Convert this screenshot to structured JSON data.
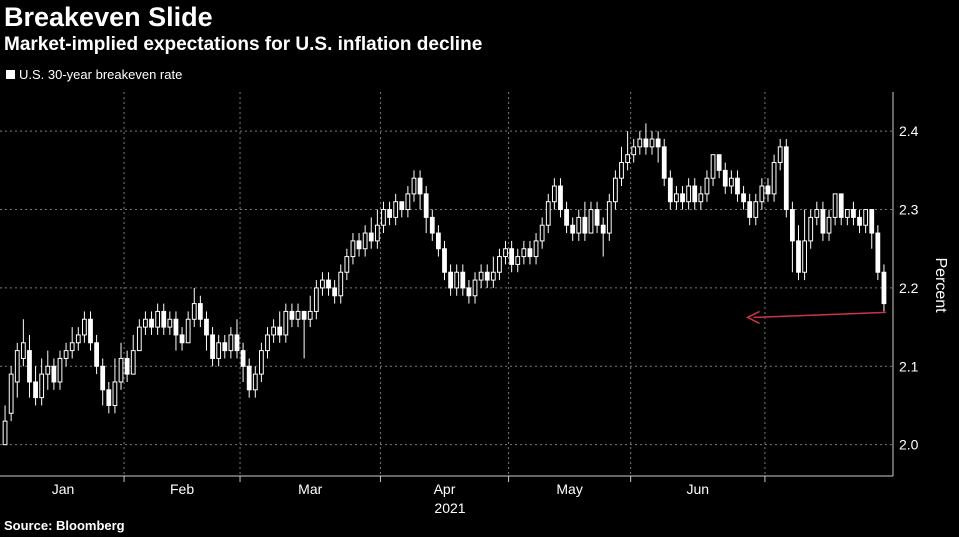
{
  "chart_data": {
    "type": "candlestick",
    "title": "Breakeven Slide",
    "subtitle": "Market-implied expectations for U.S. inflation decline",
    "ylabel": "Percent",
    "year_label": "2021",
    "source": "Source: Bloomberg",
    "legend": [
      {
        "name": "U.S. 30-year breakeven rate",
        "color": "#ffffff"
      }
    ],
    "ylim": [
      1.96,
      2.45
    ],
    "yticks": [
      2.0,
      2.1,
      2.2,
      2.3,
      2.4
    ],
    "month_labels": [
      "Jan",
      "Feb",
      "Mar",
      "Apr",
      "May",
      "Jun"
    ],
    "grid": true,
    "annotation": {
      "type": "arrow",
      "color": "#d0314a",
      "from_day": 122,
      "to_day": 121,
      "value": 2.17
    },
    "series": [
      {
        "name": "U.S. 30-year breakeven rate",
        "candles": [
          [
            2.0,
            2.03,
            2.0,
            2.05
          ],
          [
            2.04,
            2.09,
            2.03,
            2.1
          ],
          [
            2.08,
            2.12,
            2.06,
            2.13
          ],
          [
            2.11,
            2.13,
            2.1,
            2.16
          ],
          [
            2.12,
            2.08,
            2.06,
            2.14
          ],
          [
            2.08,
            2.06,
            2.05,
            2.1
          ],
          [
            2.06,
            2.09,
            2.05,
            2.11
          ],
          [
            2.09,
            2.1,
            2.07,
            2.12
          ],
          [
            2.1,
            2.08,
            2.07,
            2.11
          ],
          [
            2.08,
            2.11,
            2.07,
            2.12
          ],
          [
            2.11,
            2.12,
            2.1,
            2.13
          ],
          [
            2.12,
            2.13,
            2.11,
            2.15
          ],
          [
            2.13,
            2.14,
            2.12,
            2.15
          ],
          [
            2.14,
            2.16,
            2.13,
            2.17
          ],
          [
            2.16,
            2.13,
            2.12,
            2.17
          ],
          [
            2.13,
            2.1,
            2.09,
            2.14
          ],
          [
            2.1,
            2.07,
            2.05,
            2.11
          ],
          [
            2.07,
            2.05,
            2.04,
            2.08
          ],
          [
            2.05,
            2.08,
            2.04,
            2.11
          ],
          [
            2.08,
            2.11,
            2.07,
            2.13
          ],
          [
            2.11,
            2.09,
            2.08,
            2.12
          ],
          [
            2.09,
            2.12,
            2.09,
            2.14
          ],
          [
            2.12,
            2.15,
            2.12,
            2.16
          ],
          [
            2.15,
            2.16,
            2.14,
            2.17
          ],
          [
            2.16,
            2.15,
            2.14,
            2.17
          ],
          [
            2.15,
            2.17,
            2.14,
            2.18
          ],
          [
            2.17,
            2.15,
            2.14,
            2.18
          ],
          [
            2.15,
            2.16,
            2.14,
            2.17
          ],
          [
            2.16,
            2.14,
            2.12,
            2.17
          ],
          [
            2.14,
            2.13,
            2.12,
            2.15
          ],
          [
            2.13,
            2.16,
            2.13,
            2.17
          ],
          [
            2.16,
            2.18,
            2.15,
            2.2
          ],
          [
            2.18,
            2.16,
            2.15,
            2.19
          ],
          [
            2.16,
            2.14,
            2.12,
            2.17
          ],
          [
            2.14,
            2.11,
            2.1,
            2.15
          ],
          [
            2.11,
            2.13,
            2.1,
            2.14
          ],
          [
            2.13,
            2.12,
            2.11,
            2.14
          ],
          [
            2.12,
            2.14,
            2.11,
            2.15
          ],
          [
            2.14,
            2.12,
            2.11,
            2.16
          ],
          [
            2.12,
            2.1,
            2.08,
            2.13
          ],
          [
            2.1,
            2.07,
            2.06,
            2.11
          ],
          [
            2.07,
            2.09,
            2.06,
            2.1
          ],
          [
            2.09,
            2.12,
            2.08,
            2.13
          ],
          [
            2.12,
            2.14,
            2.11,
            2.15
          ],
          [
            2.14,
            2.15,
            2.13,
            2.16
          ],
          [
            2.15,
            2.14,
            2.13,
            2.17
          ],
          [
            2.14,
            2.17,
            2.13,
            2.18
          ],
          [
            2.17,
            2.16,
            2.15,
            2.18
          ],
          [
            2.16,
            2.17,
            2.15,
            2.18
          ],
          [
            2.17,
            2.16,
            2.11,
            2.17
          ],
          [
            2.16,
            2.17,
            2.15,
            2.19
          ],
          [
            2.17,
            2.2,
            2.16,
            2.21
          ],
          [
            2.2,
            2.21,
            2.19,
            2.22
          ],
          [
            2.21,
            2.2,
            2.19,
            2.22
          ],
          [
            2.2,
            2.19,
            2.18,
            2.21
          ],
          [
            2.19,
            2.22,
            2.18,
            2.23
          ],
          [
            2.22,
            2.24,
            2.21,
            2.25
          ],
          [
            2.24,
            2.26,
            2.23,
            2.27
          ],
          [
            2.26,
            2.25,
            2.24,
            2.27
          ],
          [
            2.25,
            2.27,
            2.24,
            2.28
          ],
          [
            2.27,
            2.26,
            2.25,
            2.29
          ],
          [
            2.26,
            2.28,
            2.25,
            2.3
          ],
          [
            2.28,
            2.3,
            2.27,
            2.31
          ],
          [
            2.3,
            2.29,
            2.28,
            2.31
          ],
          [
            2.29,
            2.31,
            2.28,
            2.32
          ],
          [
            2.31,
            2.3,
            2.29,
            2.31
          ],
          [
            2.3,
            2.32,
            2.29,
            2.33
          ],
          [
            2.32,
            2.34,
            2.31,
            2.35
          ],
          [
            2.34,
            2.32,
            2.3,
            2.35
          ],
          [
            2.32,
            2.29,
            2.27,
            2.33
          ],
          [
            2.29,
            2.27,
            2.26,
            2.3
          ],
          [
            2.27,
            2.25,
            2.24,
            2.28
          ],
          [
            2.25,
            2.22,
            2.21,
            2.26
          ],
          [
            2.22,
            2.2,
            2.19,
            2.23
          ],
          [
            2.2,
            2.22,
            2.19,
            2.23
          ],
          [
            2.22,
            2.2,
            2.19,
            2.23
          ],
          [
            2.2,
            2.19,
            2.18,
            2.21
          ],
          [
            2.19,
            2.21,
            2.18,
            2.22
          ],
          [
            2.21,
            2.22,
            2.2,
            2.23
          ],
          [
            2.22,
            2.21,
            2.2,
            2.23
          ],
          [
            2.21,
            2.22,
            2.2,
            2.24
          ],
          [
            2.22,
            2.24,
            2.21,
            2.25
          ],
          [
            2.24,
            2.25,
            2.23,
            2.26
          ],
          [
            2.25,
            2.23,
            2.22,
            2.26
          ],
          [
            2.23,
            2.24,
            2.22,
            2.25
          ],
          [
            2.24,
            2.25,
            2.23,
            2.26
          ],
          [
            2.25,
            2.24,
            2.23,
            2.26
          ],
          [
            2.24,
            2.26,
            2.23,
            2.27
          ],
          [
            2.26,
            2.28,
            2.25,
            2.29
          ],
          [
            2.28,
            2.31,
            2.27,
            2.32
          ],
          [
            2.31,
            2.33,
            2.3,
            2.34
          ],
          [
            2.33,
            2.3,
            2.29,
            2.34
          ],
          [
            2.3,
            2.28,
            2.27,
            2.31
          ],
          [
            2.28,
            2.27,
            2.26,
            2.29
          ],
          [
            2.27,
            2.29,
            2.26,
            2.3
          ],
          [
            2.29,
            2.27,
            2.26,
            2.31
          ],
          [
            2.27,
            2.3,
            2.27,
            2.31
          ],
          [
            2.3,
            2.28,
            2.27,
            2.31
          ],
          [
            2.28,
            2.27,
            2.24,
            2.29
          ],
          [
            2.27,
            2.31,
            2.26,
            2.32
          ],
          [
            2.31,
            2.34,
            2.3,
            2.35
          ],
          [
            2.34,
            2.36,
            2.33,
            2.38
          ],
          [
            2.36,
            2.37,
            2.35,
            2.4
          ],
          [
            2.37,
            2.38,
            2.36,
            2.39
          ],
          [
            2.38,
            2.39,
            2.37,
            2.4
          ],
          [
            2.39,
            2.38,
            2.37,
            2.41
          ],
          [
            2.38,
            2.39,
            2.37,
            2.4
          ],
          [
            2.39,
            2.38,
            2.36,
            2.4
          ],
          [
            2.38,
            2.34,
            2.33,
            2.39
          ],
          [
            2.34,
            2.31,
            2.3,
            2.35
          ],
          [
            2.31,
            2.32,
            2.3,
            2.33
          ],
          [
            2.32,
            2.31,
            2.3,
            2.33
          ],
          [
            2.31,
            2.33,
            2.3,
            2.34
          ],
          [
            2.33,
            2.31,
            2.3,
            2.34
          ],
          [
            2.31,
            2.32,
            2.3,
            2.33
          ],
          [
            2.32,
            2.34,
            2.31,
            2.35
          ],
          [
            2.34,
            2.37,
            2.33,
            2.37
          ],
          [
            2.37,
            2.35,
            2.34,
            2.37
          ],
          [
            2.35,
            2.33,
            2.32,
            2.36
          ],
          [
            2.33,
            2.34,
            2.32,
            2.35
          ],
          [
            2.34,
            2.32,
            2.31,
            2.35
          ],
          [
            2.32,
            2.31,
            2.3,
            2.33
          ],
          [
            2.31,
            2.29,
            2.28,
            2.32
          ],
          [
            2.29,
            2.31,
            2.28,
            2.32
          ],
          [
            2.31,
            2.33,
            2.3,
            2.34
          ],
          [
            2.33,
            2.32,
            2.31,
            2.34
          ],
          [
            2.32,
            2.36,
            2.31,
            2.37
          ],
          [
            2.36,
            2.38,
            2.35,
            2.39
          ],
          [
            2.38,
            2.3,
            2.29,
            2.39
          ],
          [
            2.3,
            2.26,
            2.22,
            2.31
          ],
          [
            2.26,
            2.22,
            2.21,
            2.28
          ],
          [
            2.22,
            2.26,
            2.21,
            2.3
          ],
          [
            2.26,
            2.29,
            2.25,
            2.3
          ],
          [
            2.29,
            2.3,
            2.28,
            2.31
          ],
          [
            2.3,
            2.27,
            2.26,
            2.31
          ],
          [
            2.27,
            2.29,
            2.26,
            2.3
          ],
          [
            2.29,
            2.32,
            2.28,
            2.32
          ],
          [
            2.32,
            2.29,
            2.28,
            2.32
          ],
          [
            2.29,
            2.3,
            2.28,
            2.3
          ],
          [
            2.3,
            2.29,
            2.28,
            2.31
          ],
          [
            2.29,
            2.28,
            2.27,
            2.3
          ],
          [
            2.28,
            2.3,
            2.27,
            2.3
          ],
          [
            2.3,
            2.27,
            2.25,
            2.3
          ],
          [
            2.27,
            2.22,
            2.21,
            2.28
          ],
          [
            2.22,
            2.18,
            2.17,
            2.23
          ]
        ]
      }
    ]
  }
}
